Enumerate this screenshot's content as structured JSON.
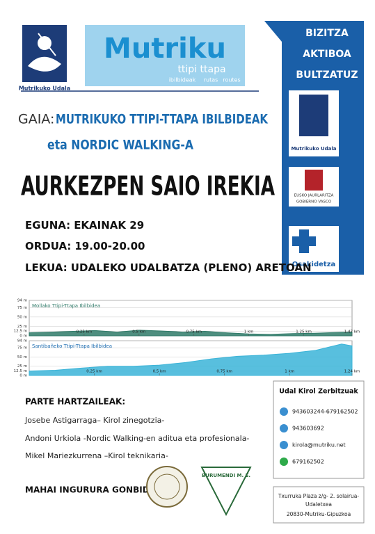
{
  "header": {
    "logo_caption": "Mutrikuko Udala",
    "brand": "Mutriku",
    "brand_sub": "ttipi ttapa",
    "brand_tags": [
      "ibilbideak",
      "rutas",
      "routes"
    ]
  },
  "sidebar": {
    "slogan": [
      "BIZITZA",
      "AKTIBOA",
      "BULTZATUZ"
    ],
    "logo_caption": "Mutrikuko Udala",
    "gov_lines": [
      "EUSKO JAURLARITZA",
      "GOBIERNO VASCO"
    ],
    "health": "Osakidetza"
  },
  "gaia": {
    "label": "GAIA:",
    "line1": "MUTRIKUKO TTIPI-TTAPA IBILBIDEAK",
    "line2": "eta NORDIC WALKING-A"
  },
  "headline": "AURKEZPEN SAIO IREKIA",
  "details": [
    {
      "label": "EGUNA:",
      "value": "EKAINAK 29"
    },
    {
      "label": "ORDUA:",
      "value": "19.00-20.00"
    },
    {
      "label": "LEKUA:",
      "value": "UDALEKO UDALBATZA (PLENO) ARETOAN"
    }
  ],
  "chart_data": [
    {
      "type": "area",
      "title": "Mollako Ttipi-Ttapa Ibilbidea",
      "color": "#2f7a68",
      "x": [
        0,
        0.1,
        0.2,
        0.3,
        0.4,
        0.5,
        0.6,
        0.7,
        0.8,
        0.9,
        1.0,
        1.1,
        1.2,
        1.3,
        1.4,
        1.47
      ],
      "values": [
        8,
        10,
        12,
        14,
        10,
        15,
        13,
        10,
        12,
        8,
        5,
        4,
        6,
        7,
        9,
        10
      ],
      "xlim": [
        0,
        1.47
      ],
      "ylim": [
        0,
        94
      ],
      "xticks": [
        {
          "value": 0.25,
          "label": "0.25 km"
        },
        {
          "value": 0.5,
          "label": "0.5 km"
        },
        {
          "value": 0.75,
          "label": "0.75 km"
        },
        {
          "value": 1,
          "label": "1 km"
        },
        {
          "value": 1.25,
          "label": "1.25 km"
        },
        {
          "value": 1.47,
          "label": "1.47 km"
        }
      ],
      "yticks": [
        {
          "value": 0,
          "label": "0 m"
        },
        {
          "value": 12.5,
          "label": "12.5 m"
        },
        {
          "value": 25,
          "label": "25 m"
        },
        {
          "value": 50,
          "label": "50 m"
        },
        {
          "value": 75,
          "label": "75 m"
        },
        {
          "value": 94,
          "label": "94 m"
        }
      ]
    },
    {
      "type": "area",
      "title": "Santibañeko Ttipi-Ttapa Ibilbidea",
      "color": "#3bb4d8",
      "x": [
        0,
        0.1,
        0.2,
        0.3,
        0.4,
        0.5,
        0.6,
        0.7,
        0.8,
        0.9,
        1.0,
        1.1,
        1.2,
        1.24
      ],
      "values": [
        12,
        14,
        20,
        25,
        25,
        28,
        35,
        45,
        52,
        55,
        60,
        68,
        85,
        80
      ],
      "xlim": [
        0,
        1.24
      ],
      "ylim": [
        0,
        94
      ],
      "xticks": [
        {
          "value": 0.25,
          "label": "0.25 km"
        },
        {
          "value": 0.5,
          "label": "0.5 km"
        },
        {
          "value": 0.75,
          "label": "0.75 km"
        },
        {
          "value": 1,
          "label": "1 km"
        },
        {
          "value": 1.24,
          "label": "1.24 km"
        }
      ],
      "yticks": [
        {
          "value": 0,
          "label": "0 m"
        },
        {
          "value": 12.5,
          "label": "12.5 m"
        },
        {
          "value": 25,
          "label": "25 m"
        },
        {
          "value": 50,
          "label": "50 m"
        },
        {
          "value": 75,
          "label": "75 m"
        },
        {
          "value": 94,
          "label": "94 m"
        }
      ]
    }
  ],
  "participants": {
    "title": "PARTE HARTZAILEAK:",
    "items": [
      "Josebe Astigarraga– Kirol zinegotzia-",
      "Andoni Urkiola -Nordic Walking-en aditua  eta profesionala-",
      "Mikel Mariezkurrena –Kirol teknikaria-"
    ]
  },
  "guests": {
    "title": "MAHAI INGURURA GONBIDATUAK:",
    "club": "BURUMENDI M. E."
  },
  "contact": {
    "title": "Udal Kirol Zerbitzuak",
    "items": [
      "943603244-679162502",
      "943603692",
      "kirola@mutriku.net",
      "679162502"
    ]
  },
  "address": [
    "Txurruka Plaza z/g- 2. solairua-",
    "Udaletxea",
    "20830-Mutriku-Gipuzkoa"
  ]
}
